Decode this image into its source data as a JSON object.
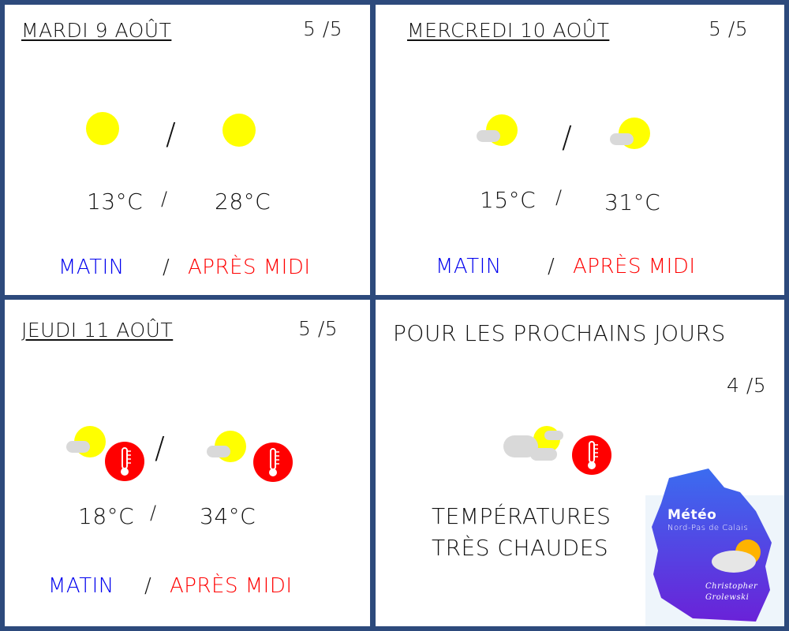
{
  "days": [
    {
      "date": "MARDI 9 AOÛT",
      "score": "5 /5",
      "temp_morning": "13°C",
      "temp_afternoon": "28°C",
      "sep": "/",
      "morning": "MATIN",
      "afternoon": "APRÈS MIDI",
      "icon_morning": "sun-icon",
      "icon_afternoon": "sun-icon"
    },
    {
      "date": "MERCREDI 10 AOÛT",
      "score": "5 /5",
      "temp_morning": "15°C",
      "temp_afternoon": "31°C",
      "sep": "/",
      "morning": "MATIN",
      "afternoon": "APRÈS MIDI",
      "icon_morning": "sun-cloud-icon",
      "icon_afternoon": "sun-cloud-icon"
    },
    {
      "date": "JEUDI 11 AOÛT",
      "score": "5 /5",
      "temp_morning": "18°C",
      "temp_afternoon": "34°C",
      "sep": "/",
      "morning": "MATIN",
      "afternoon": "APRÈS MIDI",
      "icon_morning": "sun-cloud-icon",
      "icon_afternoon": "sun-cloud-icon",
      "extra_icon": "thermometer-hot-icon"
    }
  ],
  "outlook": {
    "title": "POUR LES PROCHAINS JOURS",
    "score": "4 /5",
    "line1": "TEMPÉRATURES",
    "line2": "TRÈS CHAUDES",
    "icon": "clouds-sun-thermometer-icon"
  },
  "logo": {
    "title": "Météo",
    "subtitle": "Nord-Pas de Calais",
    "author1": "Christopher",
    "author2": "Grolewski"
  },
  "colors": {
    "border": "#2d4a7c",
    "morning": "#0000ee",
    "afternoon": "#ff0000",
    "sun": "#ffff00",
    "cloud": "#d9d9d9"
  }
}
